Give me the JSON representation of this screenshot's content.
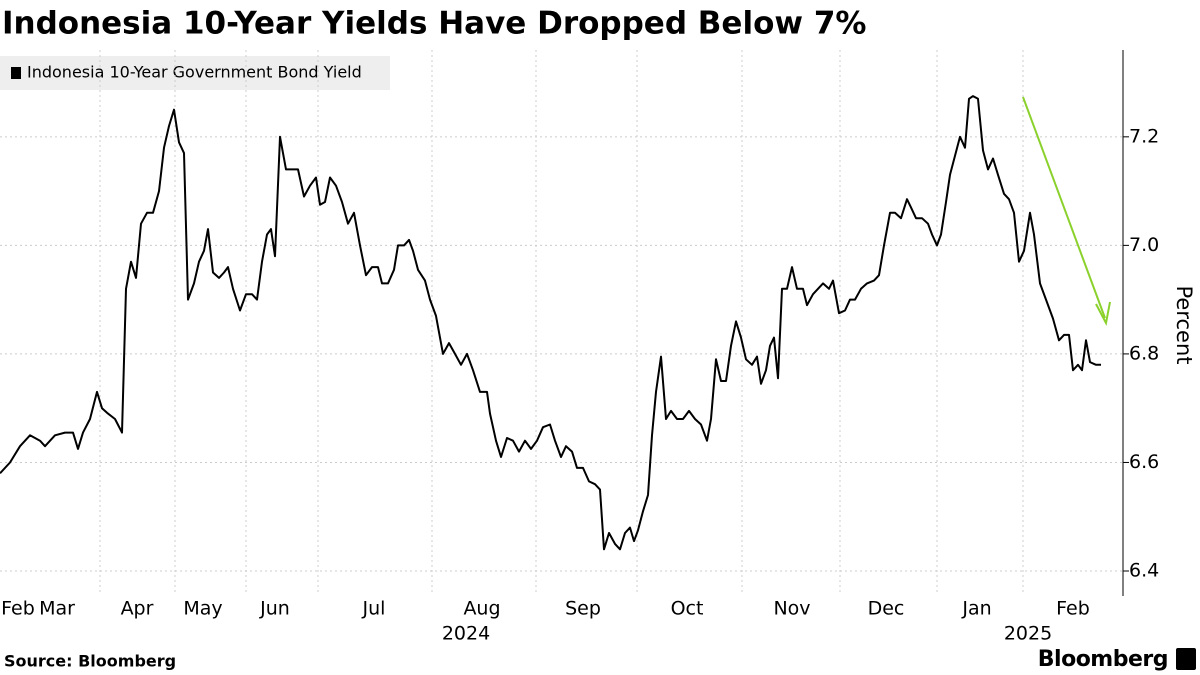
{
  "chart_data": {
    "type": "line",
    "title": "Indonesia 10-Year Yields Have Dropped Below 7%",
    "y_axis_label": "Percent",
    "source": "Source: Bloomberg",
    "brand": "Bloomberg",
    "xlim": [
      0,
      1105
    ],
    "ylim": [
      6.36,
      7.36
    ],
    "yticks": [
      6.4,
      6.6,
      6.8,
      {
        "value": 7.0,
        "label": "7.0"
      },
      7.2
    ],
    "xticks": [
      {
        "value": 18,
        "label": "Feb"
      },
      {
        "value": 57,
        "label": "Mar"
      },
      {
        "value": 137,
        "label": "Apr"
      },
      {
        "value": 203,
        "label": "May"
      },
      {
        "value": 275,
        "label": "Jun"
      },
      {
        "value": 374,
        "label": "Jul"
      },
      {
        "value": 482,
        "label": "Aug"
      },
      {
        "value": 583,
        "label": "Sep"
      },
      {
        "value": 687,
        "label": "Oct"
      },
      {
        "value": 792,
        "label": "Nov"
      },
      {
        "value": 886,
        "label": "Dec"
      },
      {
        "value": 977,
        "label": "Jan"
      },
      {
        "value": 1073,
        "label": "Feb"
      }
    ],
    "xgrid": [
      100,
      175,
      246,
      318,
      432,
      536,
      637,
      742,
      840,
      937,
      1023
    ],
    "year_labels": [
      {
        "value": 466,
        "label": "2024"
      },
      {
        "value": 1028,
        "label": "2025"
      }
    ],
    "grid": true,
    "series": [
      {
        "name": "Indonesia 10-Year Government Bond Yield",
        "color": "#000000",
        "x": [
          0,
          10,
          20,
          30,
          40,
          45,
          55,
          65,
          73,
          78,
          83,
          90,
          97,
          102,
          108,
          115,
          122,
          126,
          131,
          136,
          141,
          147,
          153,
          159,
          164,
          169,
          174,
          179,
          184,
          188,
          194,
          199,
          204,
          208,
          213,
          219,
          224,
          228,
          233,
          240,
          246,
          252,
          257,
          262,
          267,
          271,
          275,
          280,
          286,
          292,
          298,
          304,
          310,
          316,
          320,
          325,
          330,
          336,
          342,
          348,
          354,
          360,
          366,
          372,
          378,
          382,
          388,
          394,
          398,
          404,
          409,
          413,
          418,
          425,
          430,
          436,
          443,
          449,
          455,
          461,
          467,
          473,
          480,
          487,
          490,
          496,
          501,
          507,
          513,
          519,
          525,
          531,
          537,
          543,
          550,
          555,
          561,
          566,
          572,
          577,
          583,
          589,
          595,
          600,
          604,
          609,
          615,
          620,
          625,
          630,
          634,
          638,
          643,
          648,
          652,
          656,
          661,
          666,
          671,
          677,
          683,
          689,
          695,
          701,
          707,
          711,
          716,
          721,
          726,
          731,
          736,
          741,
          746,
          752,
          757,
          761,
          766,
          770,
          774,
          778,
          782,
          787,
          792,
          797,
          803,
          807,
          813,
          818,
          823,
          829,
          833,
          839,
          845,
          850,
          855,
          861,
          867,
          874,
          879,
          884,
          890,
          895,
          901,
          907,
          911,
          916,
          922,
          928,
          932,
          937,
          941,
          946,
          950,
          955,
          960,
          965,
          969,
          973,
          978,
          983,
          988,
          993,
          998,
          1004,
          1009,
          1014,
          1019,
          1024,
          1030,
          1034,
          1040,
          1046,
          1053,
          1059,
          1064,
          1069,
          1073,
          1078,
          1082,
          1086,
          1090,
          1096,
          1101
        ],
        "values": [
          6.58,
          6.6,
          6.63,
          6.65,
          6.64,
          6.63,
          6.65,
          6.655,
          6.655,
          6.625,
          6.655,
          6.68,
          6.73,
          6.7,
          6.69,
          6.68,
          6.655,
          6.92,
          6.97,
          6.94,
          7.04,
          7.06,
          7.06,
          7.1,
          7.18,
          7.22,
          7.25,
          7.19,
          7.17,
          6.9,
          6.93,
          6.97,
          6.99,
          7.03,
          6.95,
          6.94,
          6.95,
          6.96,
          6.92,
          6.88,
          6.91,
          6.91,
          6.9,
          6.97,
          7.02,
          7.03,
          6.98,
          7.2,
          7.14,
          7.14,
          7.14,
          7.09,
          7.11,
          7.125,
          7.075,
          7.08,
          7.125,
          7.11,
          7.08,
          7.04,
          7.06,
          7.0,
          6.945,
          6.96,
          6.96,
          6.93,
          6.93,
          6.955,
          7.0,
          7.0,
          7.01,
          6.99,
          6.955,
          6.935,
          6.9,
          6.87,
          6.8,
          6.82,
          6.8,
          6.78,
          6.8,
          6.77,
          6.73,
          6.73,
          6.69,
          6.64,
          6.61,
          6.645,
          6.64,
          6.62,
          6.64,
          6.625,
          6.64,
          6.665,
          6.67,
          6.64,
          6.61,
          6.63,
          6.62,
          6.59,
          6.59,
          6.565,
          6.56,
          6.55,
          6.44,
          6.47,
          6.45,
          6.44,
          6.47,
          6.48,
          6.455,
          6.475,
          6.51,
          6.54,
          6.65,
          6.73,
          6.795,
          6.68,
          6.695,
          6.68,
          6.68,
          6.695,
          6.68,
          6.67,
          6.64,
          6.68,
          6.79,
          6.75,
          6.75,
          6.815,
          6.86,
          6.83,
          6.79,
          6.78,
          6.795,
          6.745,
          6.77,
          6.815,
          6.83,
          6.755,
          6.92,
          6.92,
          6.96,
          6.92,
          6.92,
          6.89,
          6.91,
          6.92,
          6.93,
          6.92,
          6.935,
          6.875,
          6.88,
          6.9,
          6.9,
          6.92,
          6.93,
          6.935,
          6.945,
          7.0,
          7.06,
          7.06,
          7.05,
          7.085,
          7.07,
          7.05,
          7.05,
          7.04,
          7.02,
          7.0,
          7.02,
          7.08,
          7.13,
          7.165,
          7.2,
          7.18,
          7.27,
          7.275,
          7.27,
          7.175,
          7.14,
          7.16,
          7.13,
          7.095,
          7.085,
          7.06,
          6.97,
          6.99,
          7.06,
          7.02,
          6.93,
          6.9,
          6.865,
          6.825,
          6.835,
          6.835,
          6.77,
          6.78,
          6.77,
          6.825,
          6.785,
          6.78,
          6.78
        ]
      }
    ]
  }
}
